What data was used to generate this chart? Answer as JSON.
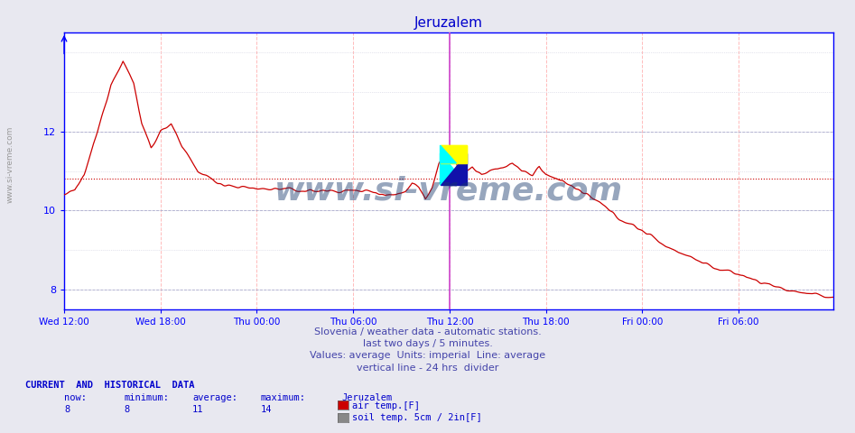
{
  "title": "Jeruzalem",
  "title_color": "#0000cc",
  "bg_color": "#e8e8f0",
  "plot_bg_color": "#ffffff",
  "line_color": "#cc0000",
  "avg_line_value": 10.8,
  "ylim": [
    7.5,
    14.5
  ],
  "yticks": [
    8,
    10,
    12
  ],
  "xlabel_ticks": [
    "Wed 12:00",
    "Wed 18:00",
    "Thu 00:00",
    "Thu 06:00",
    "Thu 12:00",
    "Thu 18:00",
    "Fri 00:00",
    "Fri 06:00"
  ],
  "xlabel_tick_positions": [
    0,
    72,
    144,
    216,
    288,
    360,
    432,
    504
  ],
  "total_points": 576,
  "divider_x": 288,
  "divider_color": "#cc44cc",
  "watermark": "www.si-vreme.com",
  "footer_lines": [
    "Slovenia / weather data - automatic stations.",
    "last two days / 5 minutes.",
    "Values: average  Units: imperial  Line: average",
    "vertical line - 24 hrs  divider"
  ],
  "legend_title": "Jeruzalem",
  "legend_items": [
    {
      "label": "air temp.[F]",
      "color": "#cc0000"
    },
    {
      "label": "soil temp. 5cm / 2in[F]",
      "color": "#888888"
    }
  ],
  "stats_now": "8",
  "stats_min": "8",
  "stats_avg": "11",
  "stats_max": "14",
  "sidebar_text": "www.si-vreme.com"
}
